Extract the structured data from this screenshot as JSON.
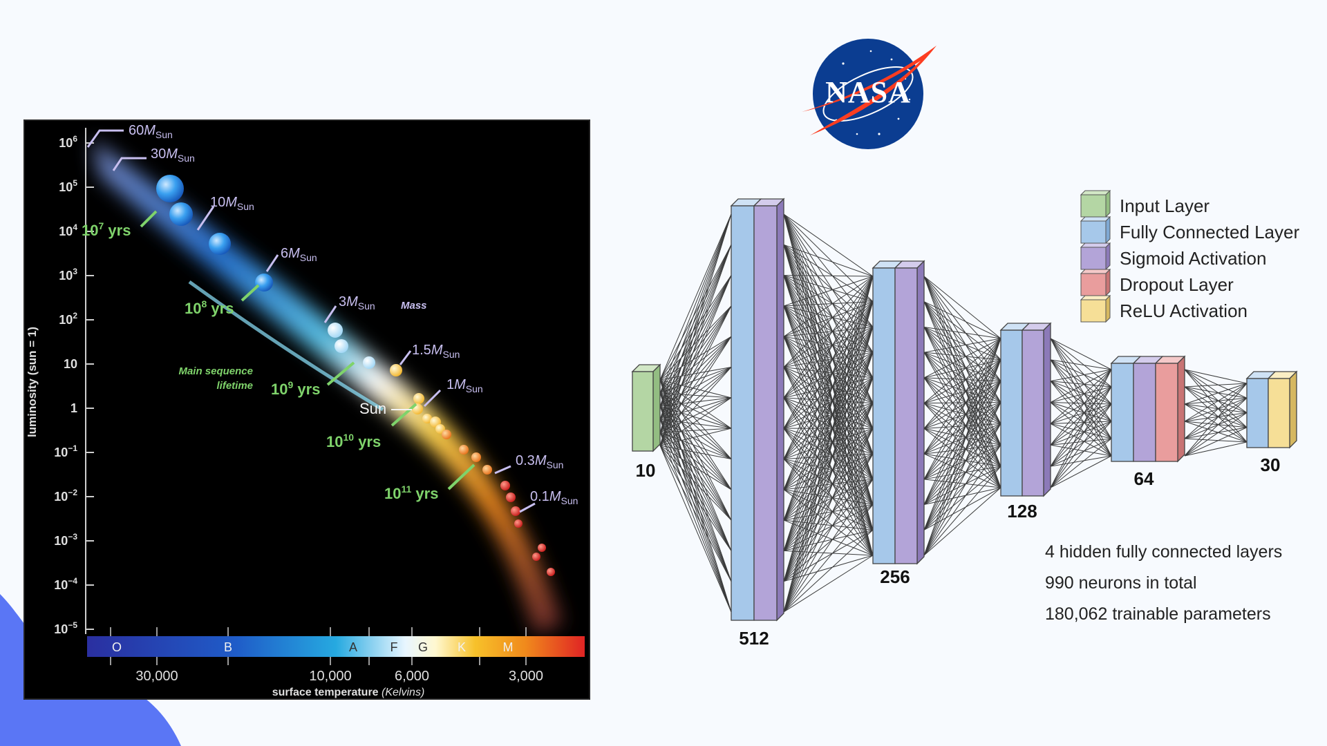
{
  "hr_diagram": {
    "y_axis_label": "luminosity (sun = 1)",
    "y_ticks": [
      {
        "base": "10",
        "exp": "6",
        "v": 6
      },
      {
        "base": "10",
        "exp": "5",
        "v": 5
      },
      {
        "base": "10",
        "exp": "4",
        "v": 4
      },
      {
        "base": "10",
        "exp": "3",
        "v": 3
      },
      {
        "base": "10",
        "exp": "2",
        "v": 2
      },
      {
        "base": "10",
        "exp": "",
        "v": 1
      },
      {
        "base": "1",
        "exp": "",
        "v": 0
      },
      {
        "base": "10",
        "exp": "−1",
        "v": -1
      },
      {
        "base": "10",
        "exp": "−2",
        "v": -2
      },
      {
        "base": "10",
        "exp": "−3",
        "v": -3
      },
      {
        "base": "10",
        "exp": "−4",
        "v": -4
      },
      {
        "base": "10",
        "exp": "−5",
        "v": -5
      }
    ],
    "x_axis_label_main": "surface temperature",
    "x_axis_label_unit": "(Kelvins)",
    "x_ticks": [
      "30,000",
      "10,000",
      "6,000",
      "3,000"
    ],
    "spectral_classes": [
      "O",
      "B",
      "A",
      "F",
      "G",
      "K",
      "M"
    ],
    "mass_labels": [
      {
        "num": "60",
        "M": "M",
        "sub": "Sun"
      },
      {
        "num": "30",
        "M": "M",
        "sub": "Sun"
      },
      {
        "num": "10",
        "M": "M",
        "sub": "Sun"
      },
      {
        "num": "6",
        "M": "M",
        "sub": "Sun"
      },
      {
        "num": "3",
        "M": "M",
        "sub": "Sun"
      },
      {
        "num": "1.5",
        "M": "M",
        "sub": "Sun"
      },
      {
        "num": "1",
        "M": "M",
        "sub": "Sun"
      },
      {
        "num": "0.3",
        "M": "M",
        "sub": "Sun"
      },
      {
        "num": "0.1",
        "M": "M",
        "sub": "Sun"
      }
    ],
    "lifetimes": [
      {
        "base": "10",
        "exp": "7",
        "unit": "yrs"
      },
      {
        "base": "10",
        "exp": "8",
        "unit": "yrs"
      },
      {
        "base": "10",
        "exp": "9",
        "unit": "yrs"
      },
      {
        "base": "10",
        "exp": "10",
        "unit": "yrs"
      },
      {
        "base": "10",
        "exp": "11",
        "unit": "yrs"
      }
    ],
    "mass_caption": "Mass",
    "lifetime_caption_1": "Main sequence",
    "lifetime_caption_2": "lifetime",
    "sun_label": "Sun"
  },
  "logo": {
    "text": "NASA",
    "colors": {
      "blue": "#0b3d91",
      "red": "#fc3d21"
    }
  },
  "network": {
    "legend": [
      {
        "label": "Input Layer",
        "color": "#b4d6a4"
      },
      {
        "label": "Fully Connected Layer",
        "color": "#a6c8ea"
      },
      {
        "label": "Sigmoid Activation",
        "color": "#b3a4d8"
      },
      {
        "label": "Dropout Layer",
        "color": "#e99d9d"
      },
      {
        "label": "ReLU Activation",
        "color": "#f6df97"
      }
    ],
    "layers": [
      {
        "size": "10",
        "blocks": [
          "input"
        ]
      },
      {
        "size": "512",
        "blocks": [
          "fc",
          "sigmoid"
        ]
      },
      {
        "size": "256",
        "blocks": [
          "fc",
          "sigmoid"
        ]
      },
      {
        "size": "128",
        "blocks": [
          "fc",
          "sigmoid"
        ]
      },
      {
        "size": "64",
        "blocks": [
          "fc",
          "sigmoid",
          "dropout"
        ]
      },
      {
        "size": "30",
        "blocks": [
          "fc",
          "relu"
        ]
      }
    ],
    "stats": [
      "4 hidden fully connected layers",
      "990 neurons in total",
      "180,062 trainable parameters"
    ]
  },
  "colors": {
    "background": "#f7fafe",
    "blob": "#5a76f5",
    "mass_label": "#c8bff0",
    "lifetime": "#7fd36b"
  }
}
